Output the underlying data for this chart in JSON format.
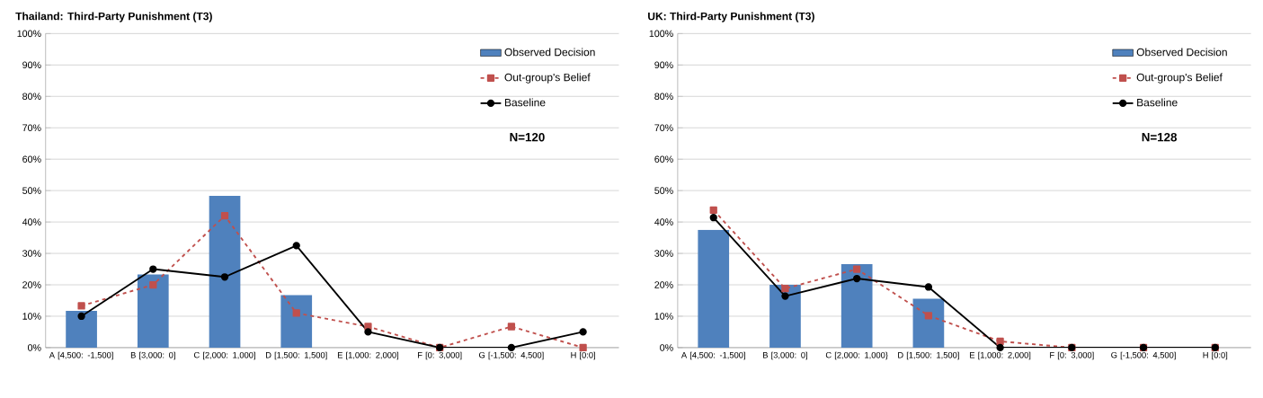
{
  "chart_data": [
    {
      "type": "bar",
      "title": "Thailand: Third-Party Punishment (T3)",
      "categories": [
        "A [4,500: -1,500]",
        "B [3,000: 0]",
        "C [2,000: 1,000]",
        "D [1,500: 1,500]",
        "E [1,000: 2,000]",
        "F [0: 3,000]",
        "G [-1,500: 4,500]",
        "H [0:0]"
      ],
      "series": [
        {
          "name": "Observed Decision",
          "color": "#4f81bd",
          "values": [
            11.7,
            23.3,
            48.3,
            16.7,
            0,
            0,
            0,
            0
          ]
        },
        {
          "name": "Out-group's Belief",
          "type": "line",
          "color": "#c0504d",
          "marker": "square",
          "line_style": "dashed",
          "values": [
            13.3,
            20,
            42,
            11,
            6.7,
            0,
            6.7,
            0
          ]
        },
        {
          "name": "Baseline",
          "type": "line",
          "color": "#000000",
          "marker": "circle",
          "line_style": "solid",
          "values": [
            10,
            25,
            22.5,
            32.5,
            5,
            0,
            0,
            5
          ]
        }
      ],
      "ylim": [
        0,
        100
      ],
      "yticks": [
        {
          "value": 0,
          "label": "0%"
        },
        {
          "value": 10,
          "label": "10%"
        },
        {
          "value": 20,
          "label": "20%"
        },
        {
          "value": 30,
          "label": "30%"
        },
        {
          "value": 40,
          "label": "40%"
        },
        {
          "value": 50,
          "label": "50%"
        },
        {
          "value": 60,
          "label": "60%"
        },
        {
          "value": 70,
          "label": "70%"
        },
        {
          "value": 80,
          "label": "80%"
        },
        {
          "value": 90,
          "label": "90%"
        },
        {
          "value": 100,
          "label": "100%"
        }
      ],
      "grid": "y",
      "legend": "top right",
      "annotations": [
        "N=120"
      ]
    },
    {
      "type": "bar",
      "title": "UK: Third-Party Punishment (T3)",
      "categories": [
        "A [4,500: -1,500]",
        "B [3,000: 0]",
        "C [2,000: 1,000}",
        "D [1,500: 1,500]",
        "E [1,000: 2,000]",
        "F [0: 3,000]",
        "G [-1,500: 4,500]",
        "H [0:0]"
      ],
      "series": [
        {
          "name": "Observed Decision",
          "color": "#4f81bd",
          "values": [
            37.5,
            20,
            26.6,
            15.6,
            0,
            0,
            0,
            0
          ]
        },
        {
          "name": "Out-group's Belief",
          "type": "line",
          "color": "#c0504d",
          "marker": "square",
          "line_style": "dashed",
          "values": [
            43.8,
            18.8,
            25,
            10.2,
            2,
            0,
            0,
            0
          ]
        },
        {
          "name": "Baseline",
          "type": "line",
          "color": "#000000",
          "marker": "circle",
          "line_style": "solid",
          "values": [
            41.4,
            16.4,
            22,
            19.3,
            0,
            0,
            0,
            0
          ]
        }
      ],
      "ylim": [
        0,
        100
      ],
      "yticks": [
        {
          "value": 0,
          "label": "0%"
        },
        {
          "value": 10,
          "label": "10%"
        },
        {
          "value": 20,
          "label": "20%"
        },
        {
          "value": 30,
          "label": "30%"
        },
        {
          "value": 40,
          "label": "40%"
        },
        {
          "value": 50,
          "label": "50%"
        },
        {
          "value": 60,
          "label": "60%"
        },
        {
          "value": 70,
          "label": "70%"
        },
        {
          "value": 80,
          "label": "80%"
        },
        {
          "value": 90,
          "label": "90%"
        },
        {
          "value": 100,
          "label": "100%"
        }
      ],
      "grid": "y",
      "legend": "top right",
      "annotations": [
        "N=128"
      ]
    }
  ]
}
